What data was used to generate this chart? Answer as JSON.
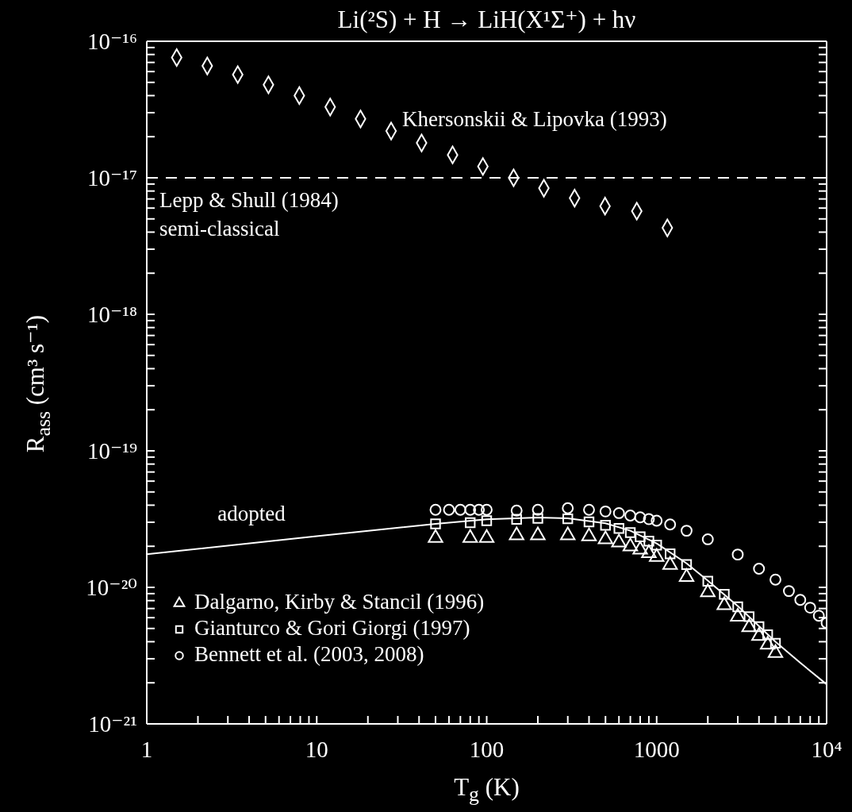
{
  "chart_data": {
    "type": "scatter",
    "title": "Li(²S) + H → LiH(X¹Σ⁺) + hν",
    "xlabel": "T$_{g}$ (K)",
    "ylabel": "R$_{ass}$ (cm³ s⁻¹)",
    "log": "xy",
    "legend": "bottom left",
    "xlim": [
      1,
      10000
    ],
    "xticks": [
      1,
      {
        "value": 2,
        "label": null
      },
      {
        "value": 3,
        "label": null
      },
      {
        "value": 4,
        "label": null
      },
      {
        "value": 5,
        "label": null
      },
      {
        "value": 6,
        "label": null
      },
      {
        "value": 7,
        "label": null
      },
      {
        "value": 8,
        "label": null
      },
      {
        "value": 9,
        "label": null
      },
      10,
      {
        "value": 20,
        "label": null
      },
      {
        "value": 30,
        "label": null
      },
      {
        "value": 40,
        "label": null
      },
      {
        "value": 50,
        "label": null
      },
      {
        "value": 60,
        "label": null
      },
      {
        "value": 70,
        "label": null
      },
      {
        "value": 80,
        "label": null
      },
      {
        "value": 90,
        "label": null
      },
      100,
      {
        "value": 200,
        "label": null
      },
      {
        "value": 300,
        "label": null
      },
      {
        "value": 400,
        "label": null
      },
      {
        "value": 500,
        "label": null
      },
      {
        "value": 600,
        "label": null
      },
      {
        "value": 700,
        "label": null
      },
      {
        "value": 800,
        "label": null
      },
      {
        "value": 900,
        "label": null
      },
      1000,
      {
        "value": 2000,
        "label": null
      },
      {
        "value": 3000,
        "label": null
      },
      {
        "value": 4000,
        "label": null
      },
      {
        "value": 5000,
        "label": null
      },
      {
        "value": 6000,
        "label": null
      },
      {
        "value": 7000,
        "label": null
      },
      {
        "value": 8000,
        "label": null
      },
      {
        "value": 9000,
        "label": null
      },
      {
        "value": 10000,
        "label": "10⁴"
      }
    ],
    "ylim": [
      1e-21,
      1e-16
    ],
    "yticks": [
      {
        "value": 1e-21,
        "label": "10⁻²¹"
      },
      {
        "value": 2e-21,
        "label": null
      },
      {
        "value": 3e-21,
        "label": null
      },
      {
        "value": 4e-21,
        "label": null
      },
      {
        "value": 5e-21,
        "label": null
      },
      {
        "value": 6e-21,
        "label": null
      },
      {
        "value": 7e-21,
        "label": null
      },
      {
        "value": 8e-21,
        "label": null
      },
      {
        "value": 9e-21,
        "label": null
      },
      {
        "value": 1e-20,
        "label": "10⁻²⁰"
      },
      {
        "value": 2e-20,
        "label": null
      },
      {
        "value": 3e-20,
        "label": null
      },
      {
        "value": 4e-20,
        "label": null
      },
      {
        "value": 5e-20,
        "label": null
      },
      {
        "value": 6e-20,
        "label": null
      },
      {
        "value": 7e-20,
        "label": null
      },
      {
        "value": 8e-20,
        "label": null
      },
      {
        "value": 9e-20,
        "label": null
      },
      {
        "value": 1e-19,
        "label": "10⁻¹⁹"
      },
      {
        "value": 2e-19,
        "label": null
      },
      {
        "value": 3e-19,
        "label": null
      },
      {
        "value": 4e-19,
        "label": null
      },
      {
        "value": 5e-19,
        "label": null
      },
      {
        "value": 6e-19,
        "label": null
      },
      {
        "value": 7e-19,
        "label": null
      },
      {
        "value": 8e-19,
        "label": null
      },
      {
        "value": 9e-19,
        "label": null
      },
      {
        "value": 1e-18,
        "label": "10⁻¹⁸"
      },
      {
        "value": 2e-18,
        "label": null
      },
      {
        "value": 3e-18,
        "label": null
      },
      {
        "value": 4e-18,
        "label": null
      },
      {
        "value": 5e-18,
        "label": null
      },
      {
        "value": 6e-18,
        "label": null
      },
      {
        "value": 7e-18,
        "label": null
      },
      {
        "value": 8e-18,
        "label": null
      },
      {
        "value": 9e-18,
        "label": null
      },
      {
        "value": 1e-17,
        "label": "10⁻¹⁷"
      },
      {
        "value": 2e-17,
        "label": null
      },
      {
        "value": 3e-17,
        "label": null
      },
      {
        "value": 4e-17,
        "label": null
      },
      {
        "value": 5e-17,
        "label": null
      },
      {
        "value": 6e-17,
        "label": null
      },
      {
        "value": 7e-17,
        "label": null
      },
      {
        "value": 8e-17,
        "label": null
      },
      {
        "value": 9e-17,
        "label": null
      },
      {
        "value": 1e-16,
        "label": "10⁻¹⁶"
      }
    ],
    "ref_lines": [
      {
        "axis": "y",
        "value": 1e-17,
        "label": "Lepp & Shull (1984) semi-classical",
        "line_style": "dashed",
        "color": "#ffffff"
      }
    ],
    "series": [
      {
        "name": "Khersonskii & Lipovka (1993)",
        "color": "#ffffff",
        "marker": "diamond",
        "x": [
          1.5,
          2.27,
          3.43,
          5.2,
          7.9,
          12,
          18.1,
          27.4,
          41.4,
          63,
          95,
          144,
          217,
          329,
          497,
          764,
          1156
        ],
        "values": [
          7.6e-17,
          6.6e-17,
          5.7e-17,
          4.8e-17,
          4e-17,
          3.3e-17,
          2.7e-17,
          2.2e-17,
          1.8e-17,
          1.47e-17,
          1.21e-17,
          1e-17,
          8.4e-18,
          7.1e-18,
          6.2e-18,
          5.7e-18,
          4.3e-18
        ]
      },
      {
        "name": "adopted",
        "type": "line",
        "color": "#ffffff",
        "x": [
          1,
          10,
          50,
          100,
          200,
          300,
          500,
          700,
          1000,
          1500,
          2000,
          3000,
          5000,
          7000,
          10000
        ],
        "values": [
          1.75e-20,
          2.37e-20,
          2.92e-20,
          3.15e-20,
          3.25e-20,
          3.2e-20,
          2.95e-20,
          2.6e-20,
          2.1e-20,
          1.5e-20,
          1.12e-20,
          7.3e-21,
          4e-21,
          2.8e-21,
          1.95e-21
        ]
      },
      {
        "name": "Dalgarno, Kirby & Stancil (1996)",
        "color": "#ffffff",
        "marker": "triangle",
        "x": [
          50,
          80,
          100,
          150,
          200,
          300,
          400,
          500,
          600,
          700,
          800,
          900,
          1000,
          1200,
          1500,
          2000,
          2500,
          3000,
          3500,
          4000,
          4500,
          5000
        ],
        "values": [
          2.3e-20,
          2.3e-20,
          2.3e-20,
          2.4e-20,
          2.4e-20,
          2.4e-20,
          2.36e-20,
          2.25e-20,
          2.13e-20,
          1.99e-20,
          1.89e-20,
          1.78e-20,
          1.67e-20,
          1.46e-20,
          1.19e-20,
          9.2e-21,
          7.4e-21,
          6.1e-21,
          5.1e-21,
          4.4e-21,
          3.8e-21,
          3.3e-21
        ]
      },
      {
        "name": "Gianturco & Gori Giorgi (1997)",
        "color": "#ffffff",
        "marker": "square",
        "x": [
          50,
          80,
          100,
          150,
          200,
          300,
          400,
          500,
          600,
          700,
          800,
          900,
          1000,
          1200,
          1500,
          2000,
          2500,
          3000,
          3500,
          4000,
          4500,
          5000
        ],
        "values": [
          2.92e-20,
          2.98e-20,
          3.08e-20,
          3.15e-20,
          3.2e-20,
          3.18e-20,
          3.02e-20,
          2.85e-20,
          2.7e-20,
          2.52e-20,
          2.35e-20,
          2.18e-20,
          2.04e-20,
          1.76e-20,
          1.47e-20,
          1.11e-20,
          8.9e-21,
          7.2e-21,
          6.1e-21,
          5.15e-21,
          4.5e-21,
          3.9e-21
        ]
      },
      {
        "name": "Bennett et al. (2003, 2008)",
        "color": "#ffffff",
        "marker": "circle",
        "x": [
          50,
          60,
          70,
          80,
          90,
          100,
          150,
          200,
          300,
          400,
          500,
          600,
          700,
          800,
          900,
          1000,
          1200,
          1500,
          2000,
          3000,
          4000,
          5000,
          6000,
          7000,
          8000,
          9000,
          10000
        ],
        "values": [
          3.7e-20,
          3.7e-20,
          3.7e-20,
          3.7e-20,
          3.7e-20,
          3.7e-20,
          3.65e-20,
          3.7e-20,
          3.8e-20,
          3.7e-20,
          3.6e-20,
          3.5e-20,
          3.36e-20,
          3.26e-20,
          3.16e-20,
          3.08e-20,
          2.89e-20,
          2.6e-20,
          2.25e-20,
          1.74e-20,
          1.37e-20,
          1.14e-20,
          9.4e-21,
          8.1e-21,
          7.1e-21,
          6.2e-21,
          5.5e-21
        ]
      }
    ]
  }
}
